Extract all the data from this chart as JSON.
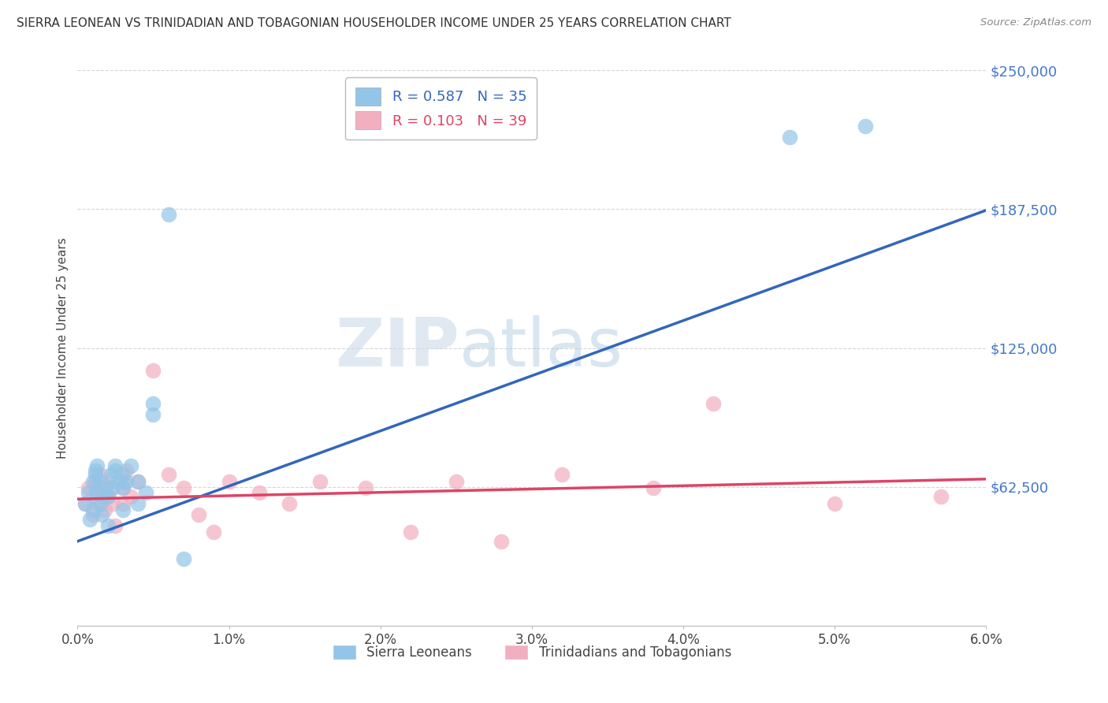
{
  "title": "SIERRA LEONEAN VS TRINIDADIAN AND TOBAGONIAN HOUSEHOLDER INCOME UNDER 25 YEARS CORRELATION CHART",
  "source": "Source: ZipAtlas.com",
  "ylabel": "Householder Income Under 25 years",
  "xlim": [
    0.0,
    0.06
  ],
  "ylim": [
    0,
    250000
  ],
  "yticks": [
    0,
    62500,
    125000,
    187500,
    250000
  ],
  "ytick_labels": [
    "",
    "$62,500",
    "$125,000",
    "$187,500",
    "$250,000"
  ],
  "xtick_labels": [
    "0.0%",
    "1.0%",
    "2.0%",
    "3.0%",
    "4.0%",
    "5.0%",
    "6.0%"
  ],
  "xticks": [
    0.0,
    0.01,
    0.02,
    0.03,
    0.04,
    0.05,
    0.06
  ],
  "legend1_r": "0.587",
  "legend1_n": "35",
  "legend2_r": "0.103",
  "legend2_n": "39",
  "color_blue": "#92c5e8",
  "color_pink": "#f2afc0",
  "line_blue": "#3366bb",
  "line_pink": "#dd4466",
  "watermark_zip": "ZIP",
  "watermark_atlas": "atlas",
  "blue_line_x0": 0.0,
  "blue_line_y0": 38000,
  "blue_line_x1": 0.06,
  "blue_line_y1": 187000,
  "pink_line_x0": 0.0,
  "pink_line_y0": 57000,
  "pink_line_x1": 0.06,
  "pink_line_y1": 66000,
  "sierra_x": [
    0.0005,
    0.0007,
    0.0008,
    0.001,
    0.001,
    0.0012,
    0.0012,
    0.0013,
    0.0013,
    0.0015,
    0.0015,
    0.0016,
    0.0017,
    0.0018,
    0.002,
    0.002,
    0.0022,
    0.0023,
    0.0025,
    0.0025,
    0.0027,
    0.003,
    0.003,
    0.003,
    0.0032,
    0.0035,
    0.004,
    0.004,
    0.0045,
    0.005,
    0.005,
    0.006,
    0.007,
    0.047,
    0.052
  ],
  "sierra_y": [
    55000,
    60000,
    48000,
    65000,
    52000,
    70000,
    68000,
    72000,
    60000,
    65000,
    55000,
    50000,
    58000,
    62000,
    58000,
    45000,
    68000,
    62000,
    70000,
    72000,
    65000,
    68000,
    62000,
    52000,
    65000,
    72000,
    65000,
    55000,
    60000,
    95000,
    100000,
    185000,
    30000,
    220000,
    225000
  ],
  "trinidadian_x": [
    0.0005,
    0.0007,
    0.001,
    0.001,
    0.0012,
    0.0013,
    0.0015,
    0.0015,
    0.0016,
    0.0018,
    0.002,
    0.002,
    0.0022,
    0.0023,
    0.0025,
    0.003,
    0.003,
    0.003,
    0.0032,
    0.0035,
    0.004,
    0.005,
    0.006,
    0.007,
    0.008,
    0.009,
    0.01,
    0.012,
    0.014,
    0.016,
    0.019,
    0.022,
    0.025,
    0.028,
    0.032,
    0.038,
    0.042,
    0.05,
    0.057
  ],
  "trinidadian_y": [
    55000,
    62000,
    58000,
    50000,
    65000,
    60000,
    68000,
    55000,
    62000,
    52000,
    65000,
    58000,
    62000,
    55000,
    45000,
    65000,
    62000,
    55000,
    70000,
    58000,
    65000,
    115000,
    68000,
    62000,
    50000,
    42000,
    65000,
    60000,
    55000,
    65000,
    62000,
    42000,
    65000,
    38000,
    68000,
    62000,
    100000,
    55000,
    58000
  ]
}
